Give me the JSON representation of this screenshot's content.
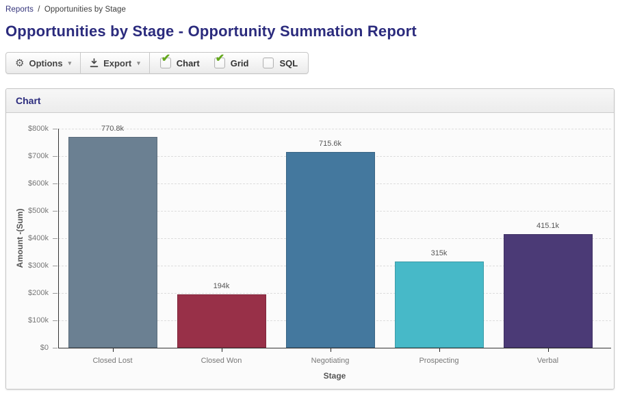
{
  "breadcrumb": {
    "link_label": "Reports",
    "separator": "/",
    "current": "Opportunities by Stage"
  },
  "page_title": "Opportunities by Stage - Opportunity Summation Report",
  "toolbar": {
    "options_label": "Options",
    "export_label": "Export",
    "toggles": [
      {
        "label": "Chart",
        "checked": true
      },
      {
        "label": "Grid",
        "checked": true
      },
      {
        "label": "SQL",
        "checked": false
      }
    ]
  },
  "panel": {
    "title": "Chart"
  },
  "chart_data": {
    "type": "bar",
    "title": "",
    "xlabel": "Stage",
    "ylabel": "Amount -(Sum)",
    "categories": [
      "Closed Lost",
      "Closed Won",
      "Negotiating",
      "Prospecting",
      "Verbal"
    ],
    "values": [
      770800,
      194000,
      715600,
      315000,
      415100
    ],
    "value_labels": [
      "770.8k",
      "194k",
      "715.6k",
      "315k",
      "415.1k"
    ],
    "bar_colors": [
      "#6b8092",
      "#983048",
      "#44789e",
      "#47b9c8",
      "#4b3a76"
    ],
    "ylim": [
      0,
      800000
    ],
    "ytick_values": [
      0,
      100000,
      200000,
      300000,
      400000,
      500000,
      600000,
      700000,
      800000
    ],
    "ytick_labels": [
      "$0",
      "$100k",
      "$200k",
      "$300k",
      "$400k",
      "$500k",
      "$600k",
      "$700k",
      "$800k"
    ],
    "grid": "horizontal-dashed",
    "legend": "none"
  },
  "colors": {
    "title_navy": "#2b2b7d",
    "link_navy": "#32327a",
    "check_green": "#65a81e",
    "axis_text": "#777777",
    "value_label_text": "#555555"
  }
}
